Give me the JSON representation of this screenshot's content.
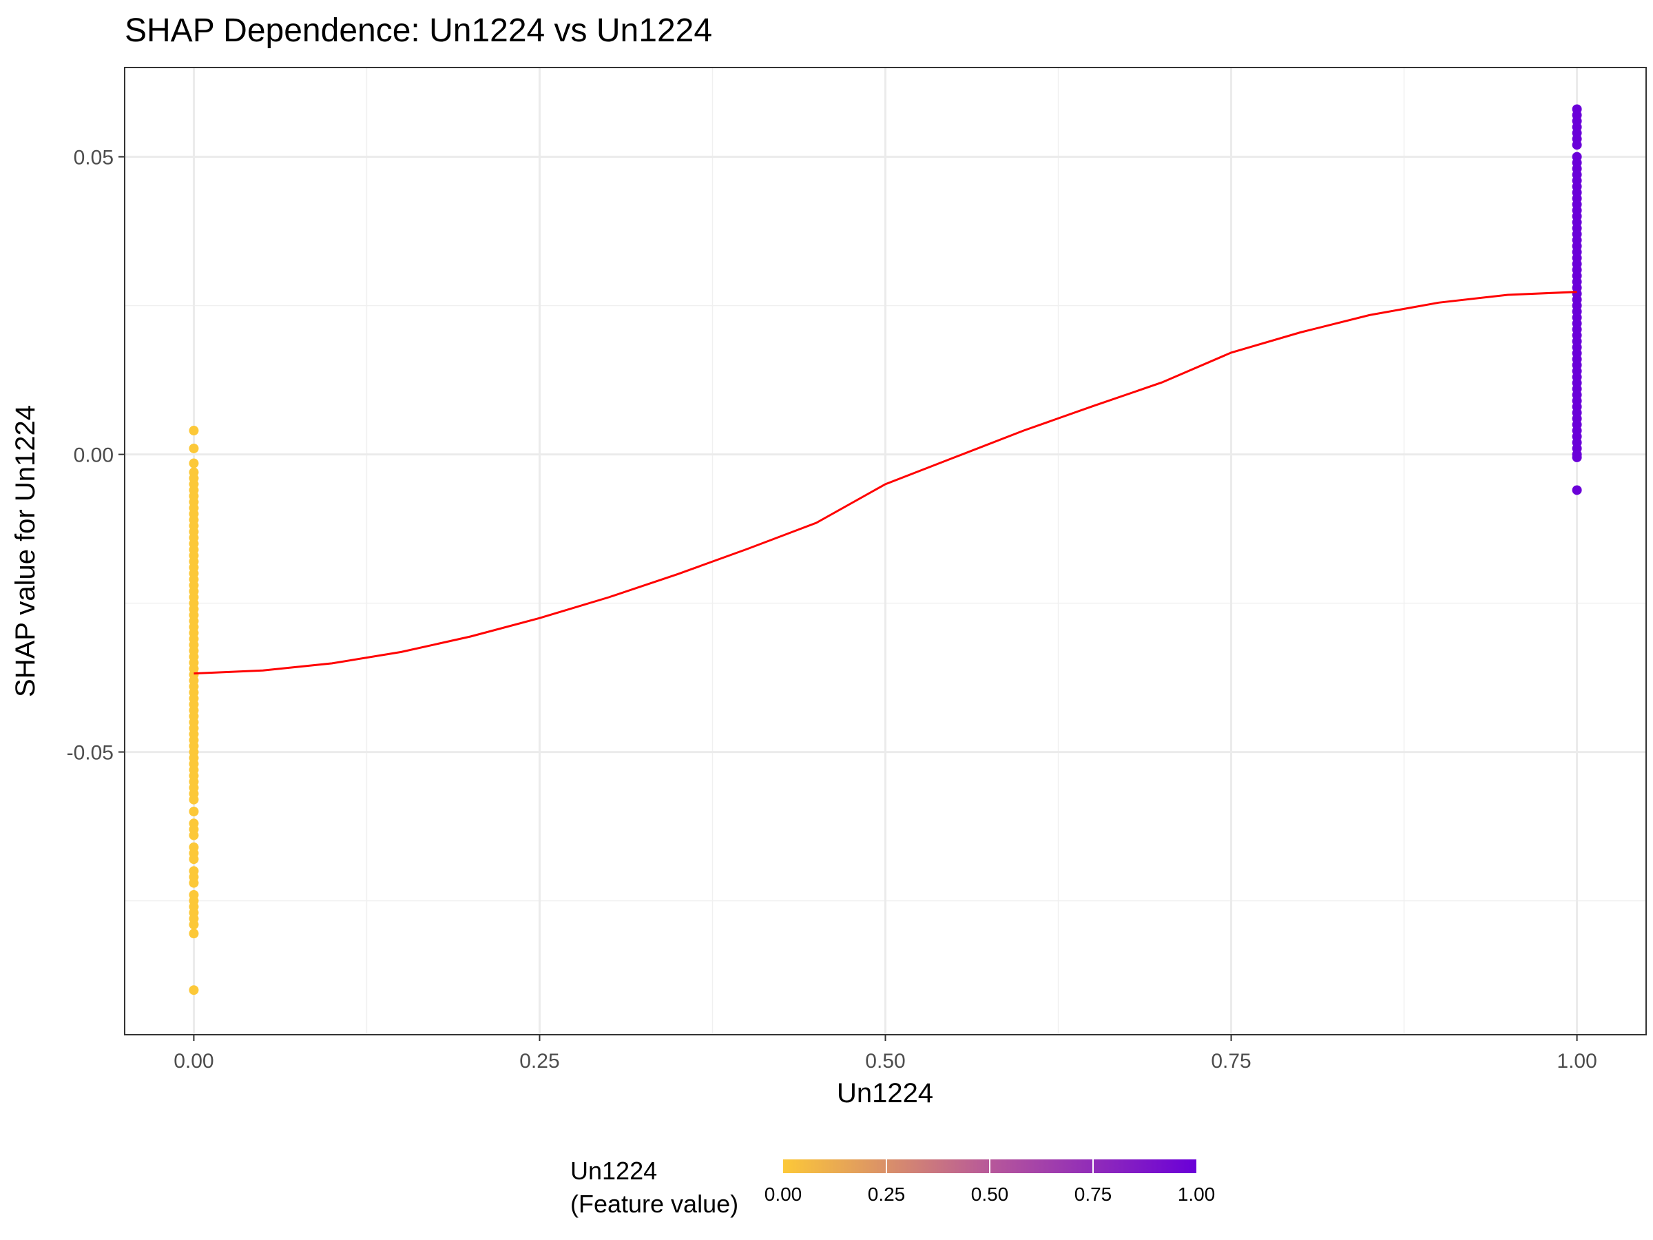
{
  "chart_data": {
    "type": "scatter",
    "title": "SHAP Dependence: Un1224 vs Un1224",
    "xlabel": "Un1224",
    "ylabel": "SHAP value for Un1224",
    "xlim": [
      -0.05,
      1.05
    ],
    "ylim": [
      -0.0975,
      0.065
    ],
    "x_ticks": [
      0.0,
      0.25,
      0.5,
      0.75,
      1.0
    ],
    "x_tick_labels": [
      "0.00",
      "0.25",
      "0.50",
      "0.75",
      "1.00"
    ],
    "y_ticks": [
      -0.05,
      0.0,
      0.05
    ],
    "y_tick_labels": [
      "-0.05",
      "0.00",
      "0.05"
    ],
    "grid": true,
    "color_scale": {
      "low": "#FCC838",
      "mid": "#B7589A",
      "high": "#6A00D8"
    },
    "points_x0": [
      0.004,
      0.001,
      -0.0015,
      -0.003,
      -0.004,
      -0.005,
      -0.006,
      -0.007,
      -0.008,
      -0.009,
      -0.01,
      -0.011,
      -0.012,
      -0.013,
      -0.014,
      -0.015,
      -0.016,
      -0.017,
      -0.018,
      -0.019,
      -0.02,
      -0.021,
      -0.022,
      -0.023,
      -0.024,
      -0.025,
      -0.026,
      -0.027,
      -0.028,
      -0.029,
      -0.03,
      -0.031,
      -0.032,
      -0.033,
      -0.034,
      -0.035,
      -0.036,
      -0.037,
      -0.038,
      -0.039,
      -0.04,
      -0.041,
      -0.042,
      -0.043,
      -0.044,
      -0.045,
      -0.046,
      -0.047,
      -0.048,
      -0.049,
      -0.05,
      -0.051,
      -0.052,
      -0.053,
      -0.054,
      -0.055,
      -0.056,
      -0.057,
      -0.058,
      -0.06,
      -0.062,
      -0.063,
      -0.064,
      -0.066,
      -0.067,
      -0.068,
      -0.07,
      -0.071,
      -0.072,
      -0.074,
      -0.075,
      -0.076,
      -0.077,
      -0.078,
      -0.079,
      -0.0805,
      -0.09
    ],
    "points_x1": [
      0.058,
      0.057,
      0.056,
      0.055,
      0.054,
      0.053,
      0.052,
      0.05,
      0.049,
      0.048,
      0.047,
      0.046,
      0.045,
      0.044,
      0.043,
      0.042,
      0.041,
      0.04,
      0.039,
      0.038,
      0.037,
      0.036,
      0.035,
      0.034,
      0.033,
      0.032,
      0.031,
      0.03,
      0.029,
      0.028,
      0.027,
      0.026,
      0.025,
      0.024,
      0.023,
      0.022,
      0.021,
      0.02,
      0.019,
      0.018,
      0.017,
      0.016,
      0.015,
      0.014,
      0.013,
      0.012,
      0.011,
      0.01,
      0.009,
      0.008,
      0.007,
      0.006,
      0.005,
      0.004,
      0.003,
      0.002,
      0.001,
      0.0,
      -0.0005,
      -0.006
    ],
    "smooth_line": {
      "color": "#FF0000",
      "x": [
        0.0,
        0.05,
        0.1,
        0.15,
        0.2,
        0.25,
        0.3,
        0.35,
        0.4,
        0.45,
        0.5,
        0.55,
        0.6,
        0.65,
        0.7,
        0.75,
        0.8,
        0.85,
        0.9,
        0.95,
        1.0
      ],
      "y": [
        -0.0368,
        -0.0363,
        -0.0351,
        -0.0332,
        -0.0306,
        -0.0275,
        -0.024,
        -0.0201,
        -0.0159,
        -0.0115,
        -0.005,
        -0.0005,
        0.004,
        0.0081,
        0.0121,
        0.0171,
        0.0205,
        0.0234,
        0.0255,
        0.0268,
        0.0273
      ]
    },
    "legend": {
      "title_line1": "Un1224",
      "title_line2": "(Feature value)",
      "ticks": [
        "0.00",
        "0.25",
        "0.50",
        "0.75",
        "1.00"
      ],
      "position": "bottom"
    }
  }
}
